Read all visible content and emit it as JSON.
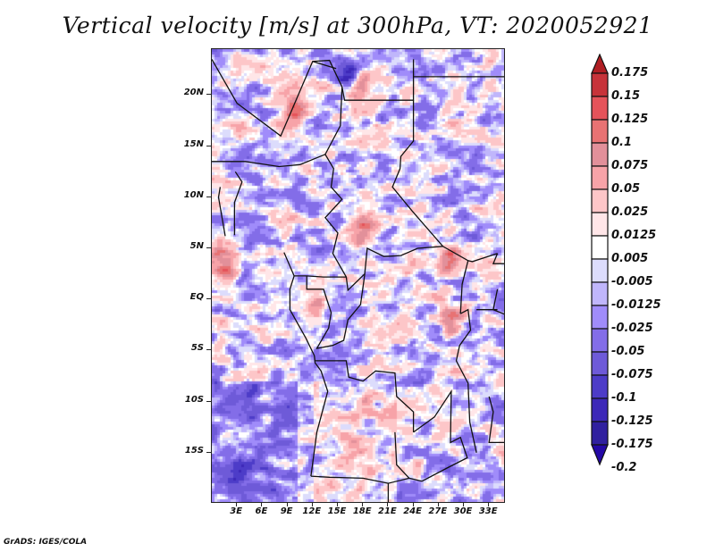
{
  "title": "Vertical velocity [m/s] at 300hPa, VT: 2020052921",
  "credit": "GrADS: IGES/COLA",
  "map": {
    "variable": "Vertical velocity",
    "units": "m/s",
    "level": "300hPa",
    "valid_time": "2020052921",
    "lon_range": [
      0,
      35
    ],
    "lat_range": [
      -20,
      24.5
    ],
    "y_axis_labels": [
      {
        "label": "20N",
        "lat": 20
      },
      {
        "label": "15N",
        "lat": 15
      },
      {
        "label": "10N",
        "lat": 10
      },
      {
        "label": "5N",
        "lat": 5
      },
      {
        "label": "EQ",
        "lat": 0
      },
      {
        "label": "5S",
        "lat": -5
      },
      {
        "label": "10S",
        "lat": -10
      },
      {
        "label": "15S",
        "lat": -15
      }
    ],
    "x_axis_labels": [
      {
        "label": "3E",
        "lon": 3
      },
      {
        "label": "6E",
        "lon": 6
      },
      {
        "label": "9E",
        "lon": 9
      },
      {
        "label": "12E",
        "lon": 12
      },
      {
        "label": "15E",
        "lon": 15
      },
      {
        "label": "18E",
        "lon": 18
      },
      {
        "label": "21E",
        "lon": 21
      },
      {
        "label": "24E",
        "lon": 24
      },
      {
        "label": "27E",
        "lon": 27
      },
      {
        "label": "30E",
        "lon": 30
      },
      {
        "label": "33E",
        "lon": 33
      }
    ],
    "hotspots": [
      {
        "lon": 9.5,
        "lat": 19,
        "value": 0.15
      },
      {
        "lon": 16.5,
        "lat": 22,
        "value": -0.15
      },
      {
        "lon": 17.5,
        "lat": 21,
        "value": 0.15
      },
      {
        "lon": 18,
        "lat": 7,
        "value": 0.15
      },
      {
        "lon": 1.5,
        "lat": 4,
        "value": 0.15
      },
      {
        "lon": 28,
        "lat": 4,
        "value": 0.125
      },
      {
        "lon": 12,
        "lat": -1,
        "value": 0.1
      },
      {
        "lon": 28.5,
        "lat": -2,
        "value": 0.1
      },
      {
        "lon": 3,
        "lat": -17,
        "value": -0.1
      },
      {
        "lon": 16.5,
        "lat": -14,
        "value": 0.05
      }
    ]
  },
  "colorbar": {
    "labels": [
      "0.175",
      "0.15",
      "0.125",
      "0.1",
      "0.075",
      "0.05",
      "0.025",
      "0.0125",
      "0.005",
      "-0.005",
      "-0.0125",
      "-0.025",
      "-0.05",
      "-0.075",
      "-0.1",
      "-0.125",
      "-0.175",
      "-0.2"
    ],
    "colors_top_to_bottom": [
      "#b01e23",
      "#c7333a",
      "#e5535a",
      "#e87273",
      "#e2909a",
      "#f7a3a8",
      "#fdc6c8",
      "#ffe6e8",
      "#ffffff",
      "#dcdcfc",
      "#c0b6fb",
      "#a08cfa",
      "#836de8",
      "#6e5ad8",
      "#4d3cc8",
      "#3d28b8",
      "#30209f",
      "#2408a6"
    ]
  }
}
